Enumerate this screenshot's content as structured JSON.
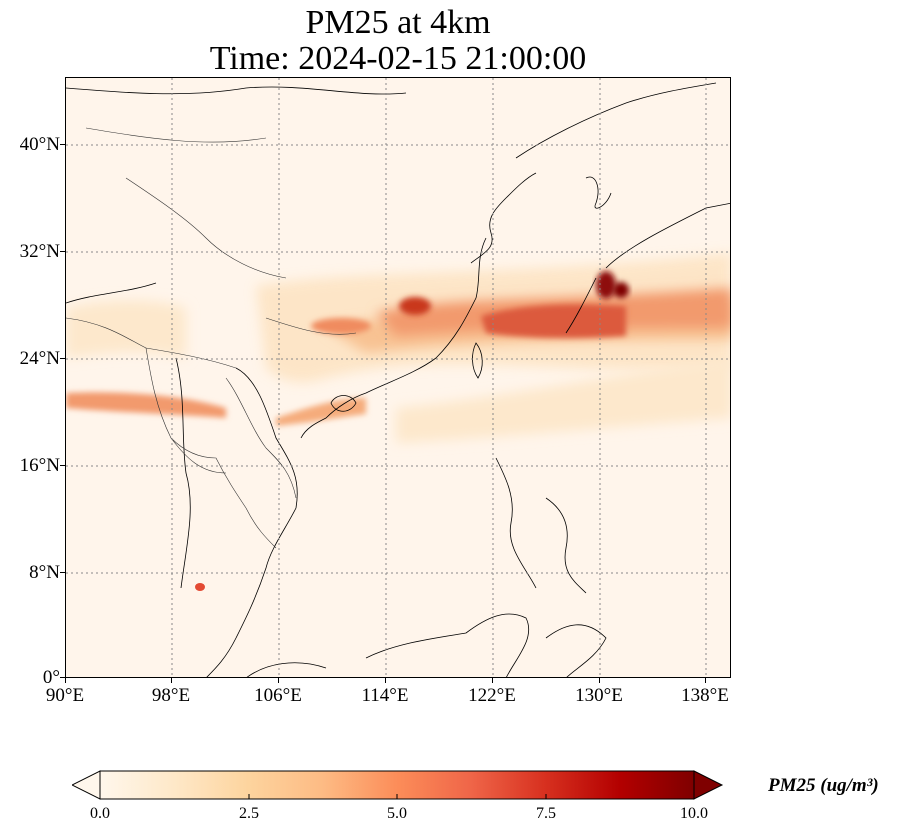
{
  "title": {
    "line1": "PM25 at 4km",
    "line2": "Time: 2024-02-15 21:00:00"
  },
  "map": {
    "region": "East Asia / Southeast Asia",
    "extent": {
      "lon_min": 90,
      "lon_max": 139,
      "lat_min": 0,
      "lat_max": 45
    },
    "background_color": "#fff5eb",
    "gridlines": "dotted gray",
    "features": [
      "coastlines",
      "country borders"
    ],
    "lat_ticks": [
      {
        "value": 40,
        "label": "40°N"
      },
      {
        "value": 32,
        "label": "32°N"
      },
      {
        "value": 24,
        "label": "24°N"
      },
      {
        "value": 16,
        "label": "16°N"
      },
      {
        "value": 8,
        "label": "8°N"
      },
      {
        "value": 0,
        "label": "0°"
      }
    ],
    "lon_ticks": [
      {
        "value": 90,
        "label": "90°E"
      },
      {
        "value": 98,
        "label": "98°E"
      },
      {
        "value": 106,
        "label": "106°E"
      },
      {
        "value": 114,
        "label": "114°E"
      },
      {
        "value": 122,
        "label": "122°E"
      },
      {
        "value": 130,
        "label": "130°E"
      },
      {
        "value": 138,
        "label": "138°E"
      }
    ]
  },
  "colorbar": {
    "label": "PM25 (ug/m³)",
    "colormap": "OrRd",
    "min": 0.0,
    "max": 10.0,
    "extend": "both",
    "tick_labels": [
      "0.0",
      "2.5",
      "5.0",
      "7.5",
      "10.0"
    ],
    "colors": [
      "#fff7ec",
      "#fee8c8",
      "#fdd49e",
      "#fdbb84",
      "#fc8d59",
      "#ef6548",
      "#d7301f",
      "#b30000",
      "#7f0000"
    ]
  }
}
